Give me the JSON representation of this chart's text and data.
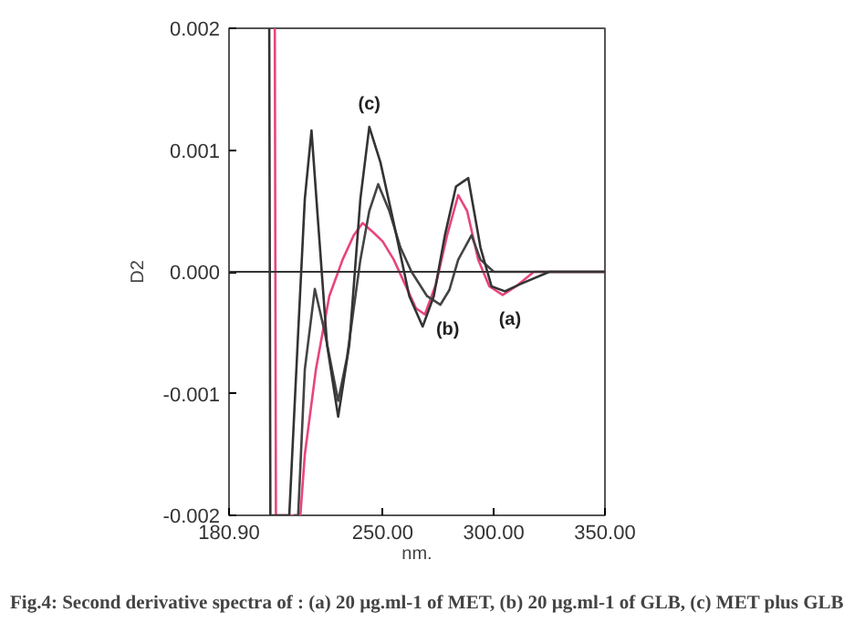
{
  "chart_data": {
    "type": "line",
    "title": "Fig.4: Second derivative spectra of : (a) 20 µg.ml-1 of  MET, (b)  20 µg.ml-1 of  GLB, (c) MET plus GLB",
    "xlabel": "nm.",
    "ylabel": "D2",
    "xlim": [
      180.9,
      350
    ],
    "ylim": [
      -0.002,
      0.002
    ],
    "xticks": [
      {
        "value": 180.9,
        "label": "180.90"
      },
      {
        "value": 250,
        "label": "250.00"
      },
      {
        "value": 300,
        "label": "300.00"
      },
      {
        "value": 350,
        "label": "350.00"
      }
    ],
    "yticks": [
      {
        "value": -0.002,
        "label": "-0.002"
      },
      {
        "value": -0.001,
        "label": "-0.001"
      },
      {
        "value": 0,
        "label": "0.000"
      },
      {
        "value": 0.001,
        "label": "0.001"
      },
      {
        "value": 0.002,
        "label": "0.002"
      }
    ],
    "series": [
      {
        "color": "#e8457c",
        "x": [
          201.5,
          202,
          203,
          213,
          215,
          220,
          226,
          232,
          237,
          241,
          246,
          250,
          255,
          260,
          265,
          269,
          274,
          279,
          284,
          288,
          293,
          298,
          304,
          310,
          318,
          330,
          350
        ],
        "values": [
          0.002,
          -0.002,
          -0.002,
          -0.002,
          -0.0015,
          -0.0008,
          -0.0002,
          0.0001,
          0.0003,
          0.0004,
          0.00032,
          0.00025,
          0.0001,
          -0.0001,
          -0.0003,
          -0.00035,
          -0.0001,
          0.0003,
          0.00063,
          0.0005,
          0.0001,
          -0.00012,
          -0.00019,
          -0.00012,
          0,
          0,
          0
        ]
      },
      {
        "color": "#444444",
        "x": [
          210,
          212,
          215,
          219.5,
          224,
          230,
          234,
          240,
          244,
          248,
          253,
          258,
          263,
          270,
          276,
          280,
          284,
          290,
          294,
          300,
          310,
          330,
          350
        ],
        "values": [
          -0.002,
          -0.002,
          -0.0008,
          -0.00014,
          -0.0005,
          -0.00106,
          -0.0007,
          0.0001,
          0.0005,
          0.00072,
          0.0005,
          0.0002,
          0,
          -0.0002,
          -0.00027,
          -0.00015,
          0.0001,
          0.0003,
          0.0001,
          0,
          0,
          0,
          0
        ]
      },
      {
        "color": "#333333",
        "x": [
          199,
          199.5,
          201,
          208,
          212,
          215,
          218,
          221,
          225,
          230,
          235,
          240,
          244,
          249,
          255,
          262,
          268,
          273,
          278,
          283,
          288.5,
          294,
          299,
          305,
          312,
          325,
          350
        ],
        "values": [
          0.002,
          -0.002,
          -0.002,
          -0.002,
          -0.0005,
          0.0006,
          0.00116,
          0.0004,
          -0.0006,
          -0.00119,
          -0.0006,
          0.0006,
          0.00119,
          0.0009,
          0.0004,
          -0.0002,
          -0.00045,
          -0.0002,
          0.0003,
          0.0007,
          0.00077,
          0.0002,
          -0.00012,
          -0.00016,
          -0.0001,
          0,
          0
        ]
      }
    ],
    "ref_lines": [
      {
        "axis": "y",
        "value": 0,
        "color": "#333333"
      }
    ],
    "annotations": [
      {
        "text": "(c)",
        "x": 244,
        "y": 0.00119
      },
      {
        "text": "(b)",
        "x": 276,
        "y": -0.00027
      },
      {
        "text": "(a)",
        "x": 304,
        "y": -0.00019
      }
    ],
    "grid": false
  }
}
